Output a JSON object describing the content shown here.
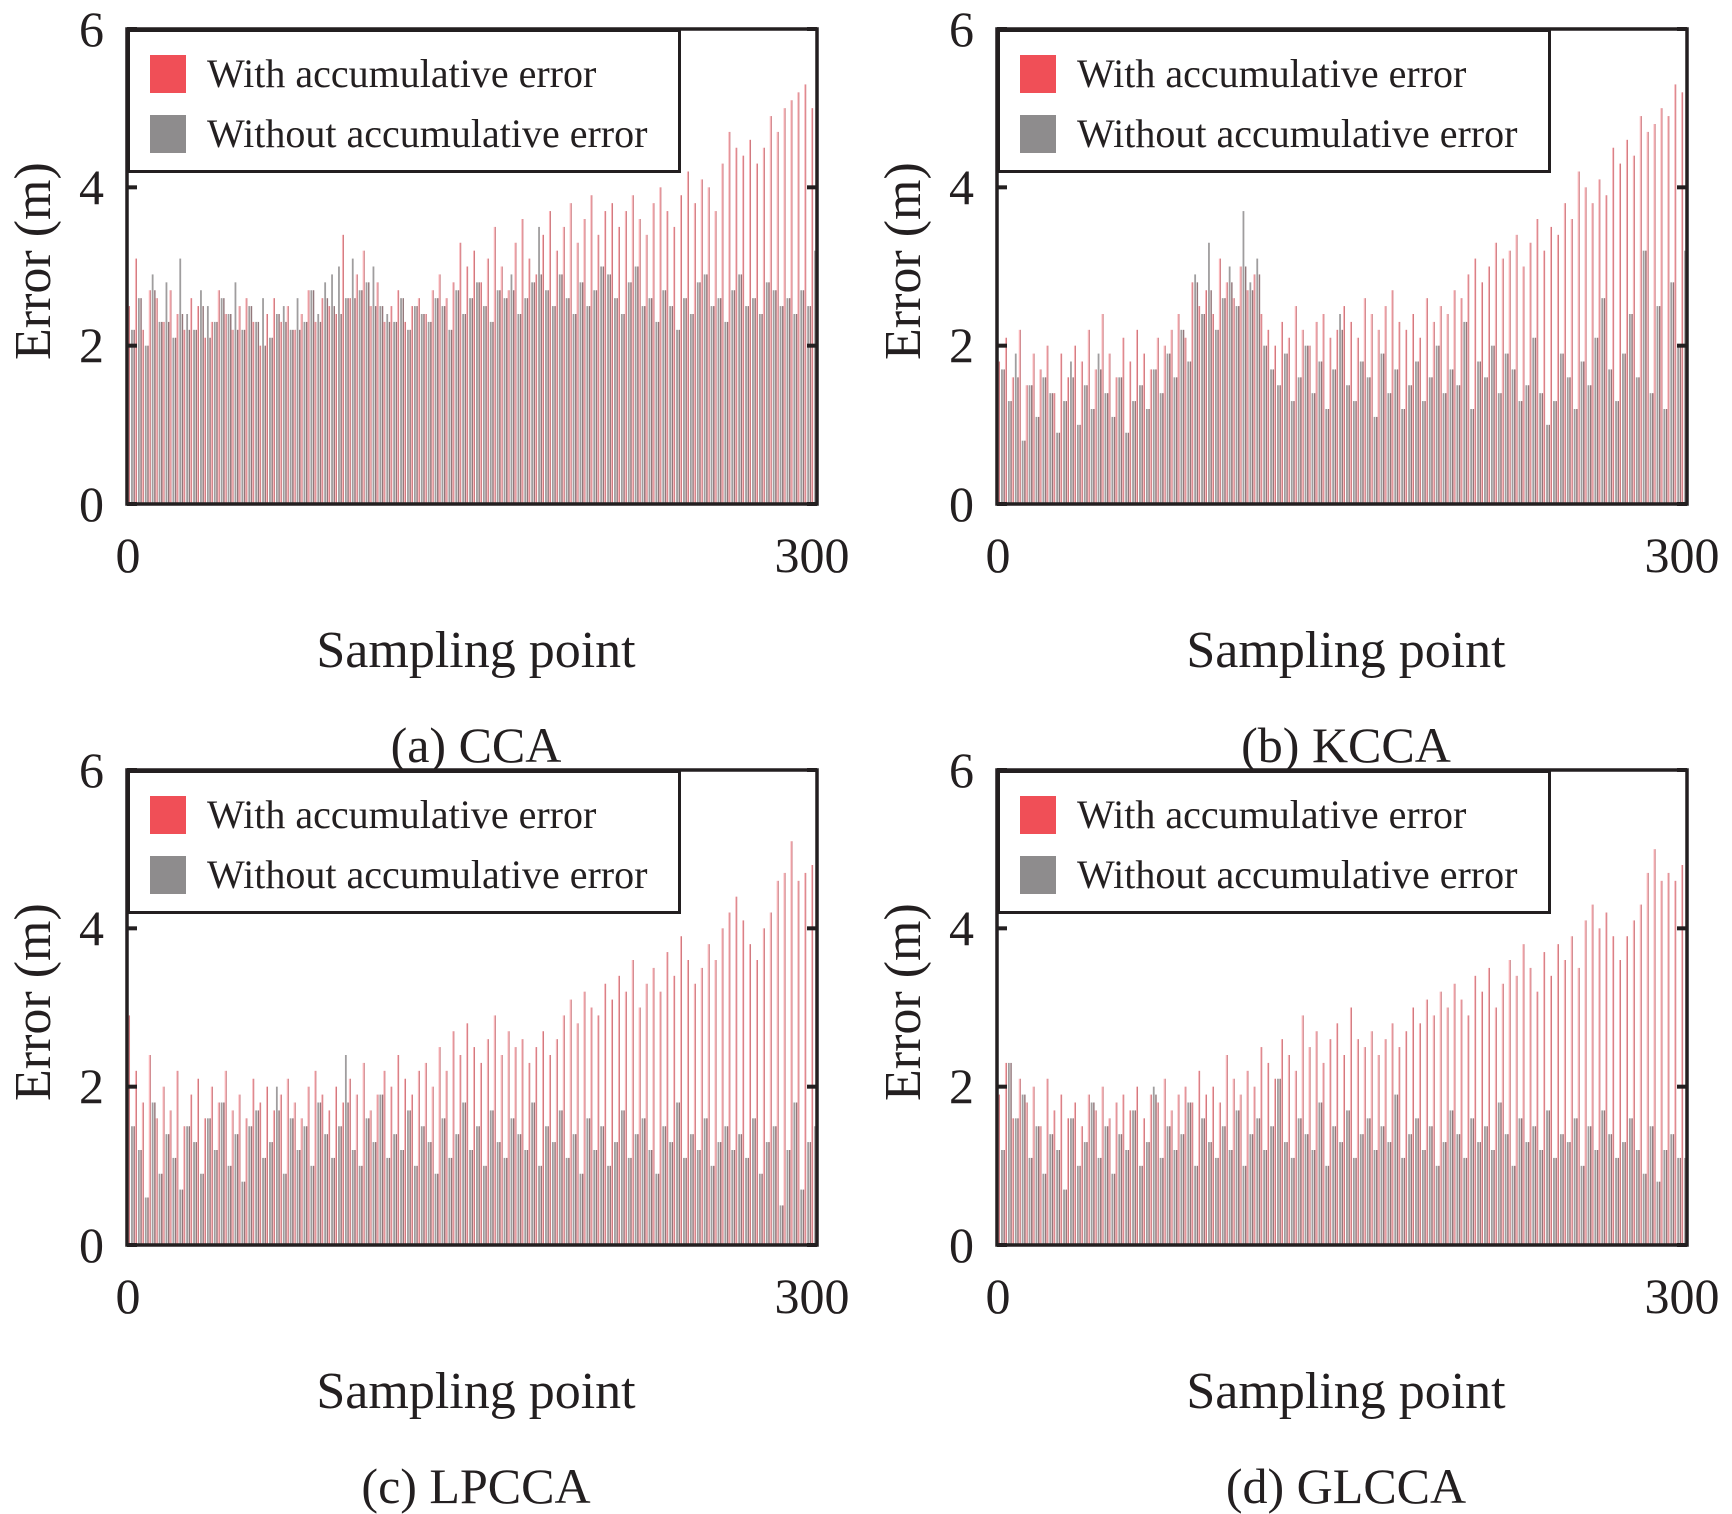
{
  "figure": {
    "legend": {
      "with_label": "With accumulative error",
      "without_label": "Without accumulative error",
      "with_color": "#f04f57",
      "without_color": "#8e8c8d"
    }
  },
  "chart_data": [
    {
      "type": "bar",
      "caption": "(a) CCA",
      "xlabel": "Sampling point",
      "ylabel": "Error (m)",
      "xlim": [
        0,
        300
      ],
      "ylim": [
        0,
        6
      ],
      "xticks": [
        "0",
        "300"
      ],
      "yticks": [
        "0",
        "2",
        "4",
        "6"
      ],
      "legend_position": "top-left",
      "x_step": 3,
      "series": [
        {
          "name": "With accumulative error",
          "values": [
            2.5,
            3.1,
            2.2,
            2.7,
            2.6,
            2.3,
            2.7,
            2.4,
            2.2,
            2.6,
            2.5,
            2.1,
            2.3,
            2.7,
            2.4,
            2.2,
            2.5,
            2.6,
            2.3,
            2.0,
            2.4,
            2.6,
            2.3,
            2.5,
            2.2,
            2.4,
            2.7,
            2.3,
            2.6,
            2.5,
            2.4,
            3.4,
            2.6,
            2.9,
            3.2,
            2.5,
            2.8,
            2.3,
            2.5,
            2.7,
            2.3,
            2.5,
            2.6,
            2.4,
            2.7,
            2.9,
            2.6,
            2.8,
            3.3,
            3.0,
            3.2,
            2.8,
            3.1,
            3.5,
            3.0,
            2.7,
            3.3,
            3.6,
            3.1,
            2.9,
            3.4,
            3.7,
            3.2,
            3.5,
            3.8,
            3.3,
            3.6,
            3.9,
            3.4,
            3.7,
            3.8,
            3.5,
            3.7,
            3.9,
            3.6,
            3.4,
            3.8,
            4.0,
            3.7,
            3.5,
            3.9,
            4.2,
            3.8,
            4.1,
            4.0,
            3.7,
            4.3,
            4.7,
            4.5,
            4.4,
            4.6,
            4.3,
            4.5,
            4.9,
            4.7,
            5.0,
            5.1,
            5.2,
            5.3,
            5.0
          ]
        },
        {
          "name": "Without accumulative error",
          "values": [
            2.2,
            2.6,
            2.0,
            2.9,
            2.3,
            2.8,
            2.1,
            3.1,
            2.4,
            2.2,
            2.7,
            2.5,
            2.3,
            2.6,
            2.4,
            2.8,
            2.2,
            2.5,
            2.3,
            2.6,
            2.1,
            2.4,
            2.5,
            2.2,
            2.6,
            2.3,
            2.7,
            2.4,
            2.8,
            2.9,
            3.0,
            2.6,
            3.1,
            2.7,
            2.8,
            3.0,
            2.5,
            2.4,
            2.3,
            2.6,
            2.2,
            2.5,
            2.4,
            2.3,
            2.6,
            2.5,
            2.2,
            2.7,
            2.4,
            2.6,
            2.8,
            2.5,
            2.3,
            2.7,
            2.6,
            2.9,
            2.4,
            2.6,
            2.8,
            3.5,
            2.7,
            2.5,
            2.9,
            2.6,
            2.4,
            2.8,
            2.5,
            2.7,
            3.0,
            2.9,
            2.6,
            2.4,
            2.8,
            3.0,
            2.5,
            2.6,
            2.3,
            2.7,
            2.5,
            2.2,
            2.6,
            2.4,
            2.8,
            2.9,
            2.5,
            2.6,
            2.3,
            2.7,
            2.9,
            2.5,
            2.6,
            2.4,
            2.8,
            2.7,
            2.5,
            2.6,
            2.4,
            2.7,
            2.5,
            3.2
          ]
        }
      ]
    },
    {
      "type": "bar",
      "caption": "(b) KCCA",
      "xlabel": "Sampling point",
      "ylabel": "Error (m)",
      "xlim": [
        0,
        300
      ],
      "ylim": [
        0,
        6
      ],
      "xticks": [
        "0",
        "300"
      ],
      "yticks": [
        "0",
        "2",
        "4",
        "6"
      ],
      "legend_position": "top-left",
      "x_step": 3,
      "series": [
        {
          "name": "With accumulative error",
          "values": [
            1.8,
            2.1,
            1.6,
            2.2,
            1.5,
            1.9,
            1.7,
            2.0,
            1.4,
            1.9,
            1.6,
            2.0,
            1.8,
            2.2,
            1.7,
            2.4,
            1.9,
            1.6,
            2.1,
            1.8,
            2.2,
            1.9,
            1.7,
            2.1,
            2.0,
            2.2,
            2.4,
            2.1,
            2.8,
            2.5,
            2.7,
            2.4,
            3.1,
            2.8,
            2.6,
            3.0,
            2.7,
            2.9,
            2.4,
            2.2,
            2.0,
            2.3,
            2.1,
            2.5,
            2.2,
            2.0,
            2.3,
            2.4,
            2.1,
            2.2,
            2.5,
            2.3,
            2.1,
            2.6,
            2.4,
            2.2,
            2.5,
            2.7,
            2.3,
            2.2,
            2.4,
            2.1,
            2.6,
            2.3,
            2.5,
            2.4,
            2.7,
            2.6,
            2.9,
            3.1,
            2.8,
            3.0,
            3.3,
            3.1,
            3.2,
            3.4,
            3.0,
            3.3,
            3.6,
            3.2,
            3.5,
            3.4,
            3.8,
            3.6,
            4.2,
            4.0,
            3.8,
            4.1,
            3.9,
            4.5,
            4.3,
            4.6,
            4.4,
            4.9,
            4.7,
            4.8,
            5.0,
            4.9,
            5.3,
            5.2
          ]
        },
        {
          "name": "Without accumulative error",
          "values": [
            1.7,
            1.3,
            1.9,
            0.8,
            1.5,
            1.1,
            1.6,
            1.4,
            0.9,
            1.3,
            1.8,
            1.0,
            1.5,
            1.2,
            1.9,
            1.4,
            1.1,
            1.6,
            0.9,
            1.3,
            1.5,
            1.2,
            1.7,
            1.4,
            1.9,
            1.6,
            2.2,
            1.8,
            2.9,
            2.4,
            3.3,
            2.2,
            2.6,
            3.0,
            2.5,
            3.7,
            2.8,
            3.1,
            2.0,
            1.7,
            1.5,
            1.9,
            1.3,
            1.6,
            2.0,
            1.4,
            1.8,
            1.2,
            1.7,
            2.4,
            1.5,
            1.3,
            1.8,
            1.6,
            1.1,
            1.9,
            1.4,
            1.7,
            1.2,
            1.5,
            1.8,
            1.3,
            1.6,
            2.0,
            1.4,
            1.7,
            1.5,
            2.3,
            1.2,
            1.8,
            1.6,
            2.0,
            1.4,
            1.9,
            1.7,
            1.3,
            1.5,
            2.1,
            1.4,
            1.0,
            1.3,
            1.9,
            1.6,
            1.2,
            1.8,
            1.5,
            2.1,
            2.6,
            1.7,
            1.3,
            1.9,
            2.4,
            1.6,
            3.2,
            1.4,
            2.5,
            1.2,
            2.8,
            2.0,
            3.2
          ]
        }
      ]
    },
    {
      "type": "bar",
      "caption": "(c) LPCCA",
      "xlabel": "Sampling point",
      "ylabel": "Error (m)",
      "xlim": [
        0,
        300
      ],
      "ylim": [
        0,
        6
      ],
      "xticks": [
        "0",
        "300"
      ],
      "yticks": [
        "0",
        "2",
        "4",
        "6"
      ],
      "legend_position": "top-left",
      "x_step": 3,
      "series": [
        {
          "name": "With accumulative error",
          "values": [
            2.9,
            2.2,
            1.8,
            2.4,
            1.6,
            2.0,
            1.7,
            2.2,
            1.5,
            1.9,
            2.1,
            1.6,
            2.0,
            1.8,
            2.2,
            1.7,
            1.9,
            1.6,
            2.1,
            1.8,
            2.0,
            1.7,
            1.9,
            2.1,
            1.8,
            1.6,
            2.0,
            2.2,
            1.9,
            1.7,
            2.0,
            1.8,
            2.1,
            1.9,
            2.3,
            1.7,
            1.9,
            2.2,
            2.0,
            2.4,
            2.1,
            1.9,
            2.2,
            2.3,
            2.0,
            2.5,
            2.2,
            2.7,
            2.4,
            2.8,
            2.5,
            2.3,
            2.6,
            2.9,
            2.4,
            2.7,
            2.5,
            2.6,
            2.3,
            2.5,
            2.7,
            2.4,
            2.6,
            2.9,
            3.1,
            2.8,
            3.2,
            3.0,
            2.9,
            3.3,
            3.1,
            3.4,
            3.2,
            3.6,
            3.0,
            3.3,
            3.5,
            3.2,
            3.7,
            3.4,
            3.9,
            3.6,
            3.3,
            3.5,
            3.8,
            3.6,
            4.0,
            4.2,
            4.4,
            4.1,
            3.8,
            3.6,
            4.0,
            4.2,
            4.6,
            4.7,
            5.1,
            4.6,
            4.7,
            4.8
          ]
        },
        {
          "name": "Without accumulative error",
          "values": [
            1.5,
            1.2,
            0.6,
            1.8,
            0.9,
            1.4,
            1.1,
            0.7,
            1.5,
            1.3,
            0.9,
            1.6,
            1.2,
            1.8,
            1.0,
            1.4,
            0.8,
            1.5,
            1.7,
            1.1,
            1.3,
            2.0,
            0.9,
            1.6,
            1.2,
            1.5,
            1.0,
            1.8,
            1.4,
            1.1,
            1.5,
            2.4,
            1.2,
            1.0,
            1.6,
            1.3,
            1.9,
            1.1,
            1.4,
            1.2,
            1.7,
            1.0,
            1.5,
            1.3,
            0.9,
            1.6,
            1.1,
            1.4,
            1.8,
            1.2,
            1.5,
            1.0,
            1.7,
            1.3,
            1.1,
            1.6,
            1.4,
            1.2,
            1.8,
            1.0,
            1.5,
            1.3,
            1.7,
            1.1,
            1.4,
            0.9,
            1.6,
            1.2,
            1.5,
            1.0,
            1.3,
            1.7,
            1.1,
            1.4,
            1.6,
            1.2,
            0.9,
            1.5,
            1.3,
            1.8,
            1.1,
            1.4,
            1.2,
            1.6,
            1.0,
            1.3,
            1.5,
            1.2,
            1.4,
            1.1,
            1.6,
            0.9,
            1.3,
            1.5,
            0.5,
            1.2,
            1.8,
            0.7,
            1.3,
            1.5
          ]
        }
      ]
    },
    {
      "type": "bar",
      "caption": "(d) GLCCA",
      "xlabel": "Sampling point",
      "ylabel": "Error (m)",
      "xlim": [
        0,
        300
      ],
      "ylim": [
        0,
        6
      ],
      "xticks": [
        "0",
        "300"
      ],
      "yticks": [
        "0",
        "2",
        "4",
        "6"
      ],
      "legend_position": "top-left",
      "x_step": 3,
      "series": [
        {
          "name": "With accumulative error",
          "values": [
            1.9,
            2.3,
            1.6,
            2.1,
            1.8,
            2.0,
            1.5,
            2.1,
            1.7,
            1.9,
            1.6,
            1.8,
            1.5,
            1.9,
            1.7,
            2.0,
            1.6,
            1.8,
            1.9,
            1.7,
            2.0,
            1.6,
            1.9,
            1.8,
            2.1,
            1.7,
            1.9,
            2.0,
            1.8,
            2.2,
            1.9,
            2.0,
            1.8,
            2.4,
            2.1,
            1.9,
            2.2,
            2.0,
            2.5,
            2.3,
            2.1,
            2.6,
            2.4,
            2.2,
            2.9,
            2.5,
            2.7,
            2.3,
            2.6,
            2.8,
            2.4,
            3.0,
            2.6,
            2.5,
            2.7,
            2.4,
            2.6,
            2.8,
            2.5,
            2.7,
            3.0,
            2.8,
            3.1,
            2.9,
            3.2,
            3.0,
            3.3,
            3.1,
            2.9,
            3.4,
            3.2,
            3.5,
            3.0,
            3.3,
            3.6,
            3.4,
            3.8,
            3.5,
            3.2,
            3.7,
            3.4,
            3.8,
            3.6,
            3.9,
            3.5,
            4.1,
            4.3,
            4.0,
            4.2,
            3.9,
            3.6,
            3.9,
            4.1,
            4.3,
            4.7,
            5.0,
            4.6,
            4.7,
            4.6,
            4.8
          ]
        },
        {
          "name": "Without accumulative error",
          "values": [
            1.2,
            2.3,
            1.6,
            1.9,
            1.1,
            1.5,
            0.9,
            1.4,
            1.2,
            0.7,
            1.6,
            1.0,
            1.3,
            1.8,
            1.1,
            1.5,
            0.9,
            1.4,
            1.2,
            1.7,
            1.0,
            1.3,
            2.0,
            1.1,
            1.5,
            1.2,
            1.4,
            1.8,
            1.0,
            1.6,
            1.3,
            1.1,
            1.5,
            1.2,
            1.7,
            1.0,
            1.4,
            1.6,
            1.2,
            1.5,
            2.1,
            1.3,
            1.1,
            1.6,
            1.4,
            1.2,
            1.8,
            1.0,
            1.5,
            1.3,
            1.7,
            1.1,
            1.4,
            1.6,
            1.2,
            1.5,
            1.3,
            1.9,
            1.1,
            1.4,
            1.6,
            1.2,
            1.5,
            1.0,
            1.3,
            1.7,
            1.4,
            1.1,
            1.6,
            1.3,
            1.5,
            1.2,
            1.8,
            1.4,
            1.0,
            1.6,
            1.3,
            1.5,
            1.2,
            1.7,
            1.1,
            1.4,
            1.3,
            1.6,
            1.0,
            1.5,
            1.2,
            1.7,
            1.4,
            1.1,
            1.3,
            1.6,
            1.2,
            0.9,
            1.5,
            0.8,
            1.2,
            1.4,
            1.1,
            1.1
          ]
        }
      ]
    }
  ]
}
